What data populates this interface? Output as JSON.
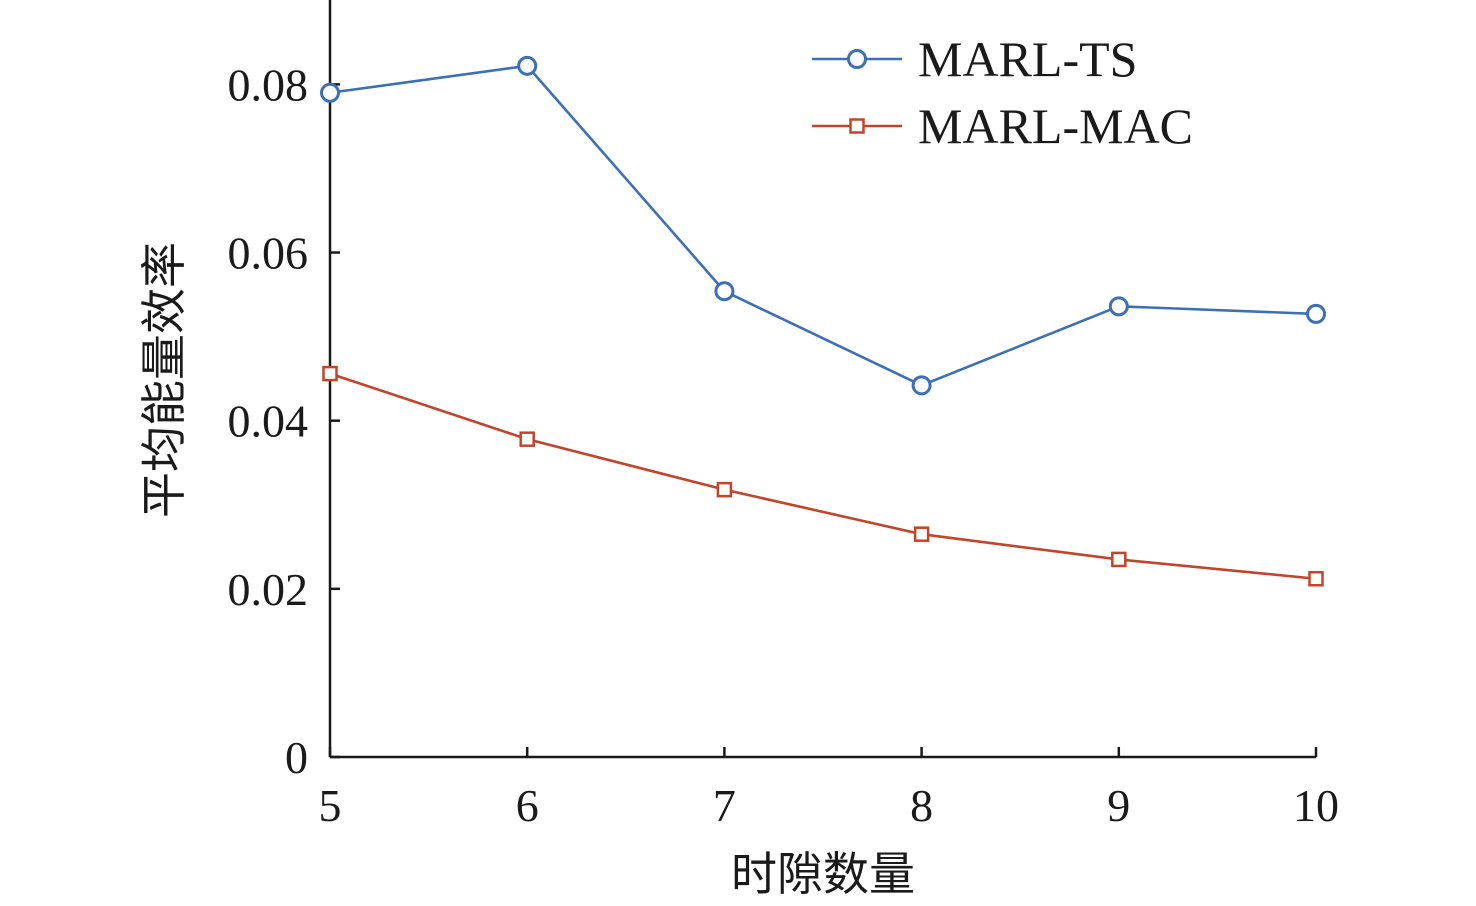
{
  "chart_data": {
    "type": "line",
    "title": "",
    "xlabel": "时隙数量",
    "ylabel": "平均能量效率",
    "x": [
      5,
      6,
      7,
      8,
      9,
      10
    ],
    "xticks": [
      "5",
      "6",
      "7",
      "8",
      "9",
      "10"
    ],
    "yticks": [
      "0",
      "0.02",
      "0.04",
      "0.06",
      "0.08"
    ],
    "xlim": [
      5,
      10
    ],
    "ylim": [
      0,
      0.09
    ],
    "grid": false,
    "legend_position": "top-right",
    "series": [
      {
        "name": "MARL-TS",
        "color": "#3d6fb6",
        "marker": "circle",
        "values": [
          0.079,
          0.0822,
          0.0554,
          0.0442,
          0.0536,
          0.0527
        ]
      },
      {
        "name": "MARL-MAC",
        "color": "#c4442a",
        "marker": "square",
        "values": [
          0.0456,
          0.0378,
          0.0318,
          0.0265,
          0.0235,
          0.0212
        ]
      }
    ]
  }
}
